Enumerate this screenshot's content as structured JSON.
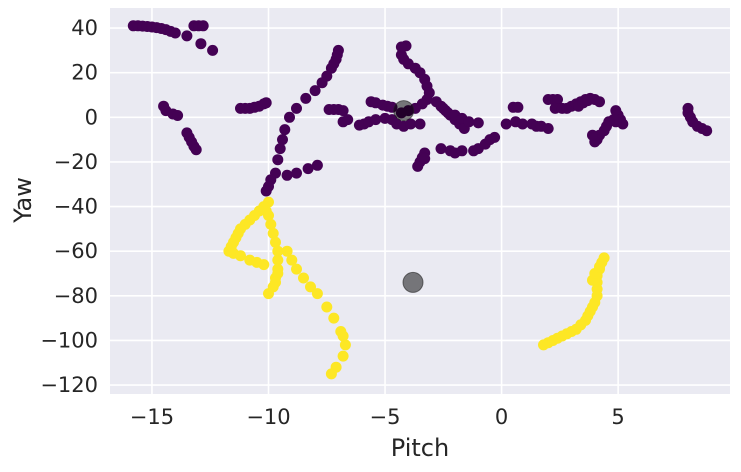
{
  "chart_data": {
    "type": "scatter",
    "xlabel": "Pitch",
    "ylabel": "Yaw",
    "xlim": [
      -16.8,
      9.8
    ],
    "ylim": [
      -124,
      49
    ],
    "xticks": [
      -15,
      -10,
      -5,
      0,
      5
    ],
    "yticks": [
      40,
      20,
      0,
      -20,
      -40,
      -60,
      -80,
      -100,
      -120
    ],
    "grid": true,
    "background": "#eaeaf2",
    "series": [
      {
        "color": "#440154",
        "points": [
          [
            -15.8,
            41
          ],
          [
            -15.6,
            41
          ],
          [
            -15.4,
            40.9
          ],
          [
            -15.2,
            40.7
          ],
          [
            -15,
            40.5
          ],
          [
            -14.8,
            40.2
          ],
          [
            -14.6,
            39.8
          ],
          [
            -14.4,
            39.3
          ],
          [
            -14.2,
            38.5
          ],
          [
            -14,
            37.8
          ],
          [
            -13.5,
            36.5
          ],
          [
            -13.2,
            41
          ],
          [
            -13,
            41
          ],
          [
            -12.8,
            41
          ],
          [
            -12.9,
            33
          ],
          [
            -12.4,
            30
          ],
          [
            -14.5,
            5
          ],
          [
            -14.4,
            3
          ],
          [
            -14.1,
            1.5
          ],
          [
            -13.9,
            0.8
          ],
          [
            -13.5,
            -7
          ],
          [
            -13.4,
            -9
          ],
          [
            -13.3,
            -11
          ],
          [
            -13.2,
            -13
          ],
          [
            -13.1,
            -14.5
          ],
          [
            -11.2,
            4
          ],
          [
            -11,
            4
          ],
          [
            -10.8,
            4
          ],
          [
            -10.6,
            4.5
          ],
          [
            -10.4,
            5
          ],
          [
            -10.2,
            6
          ],
          [
            -10.1,
            6.5
          ],
          [
            -7,
            30
          ],
          [
            -7.05,
            28
          ],
          [
            -7.1,
            26
          ],
          [
            -7.2,
            24
          ],
          [
            -7.3,
            22
          ],
          [
            -7.5,
            18.5
          ],
          [
            -7.7,
            15.5
          ],
          [
            -8,
            12
          ],
          [
            -8.4,
            8.5
          ],
          [
            -8.8,
            4
          ],
          [
            -9.1,
            0
          ],
          [
            -9.3,
            -5.5
          ],
          [
            -9.4,
            -10
          ],
          [
            -9.5,
            -14
          ],
          [
            -9.6,
            -19
          ],
          [
            -9.7,
            -25
          ],
          [
            -9.9,
            -28
          ],
          [
            -10,
            -31
          ],
          [
            -10.1,
            -33
          ],
          [
            -9.2,
            -26
          ],
          [
            -8.8,
            -25
          ],
          [
            -8.3,
            -23
          ],
          [
            -7.9,
            -21.5
          ],
          [
            -7.4,
            3.5
          ],
          [
            -7.2,
            3.5
          ],
          [
            -7,
            3.5
          ],
          [
            -6.8,
            3
          ],
          [
            -6.8,
            -2
          ],
          [
            -6.6,
            -1
          ],
          [
            -6.1,
            -3.5
          ],
          [
            -5.9,
            -3
          ],
          [
            -5.7,
            -2
          ],
          [
            -5.4,
            -1
          ],
          [
            -5,
            -0.5
          ],
          [
            -4.7,
            -1
          ],
          [
            -4.5,
            -3
          ],
          [
            -4.2,
            -4
          ],
          [
            -3.9,
            -3
          ],
          [
            -3.5,
            -3
          ],
          [
            -5.6,
            7
          ],
          [
            -5.4,
            6.5
          ],
          [
            -5.1,
            5.5
          ],
          [
            -4.9,
            5
          ],
          [
            -4.7,
            4.5
          ],
          [
            -4.3,
            28
          ],
          [
            -4.2,
            26
          ],
          [
            -4,
            24
          ],
          [
            -3.7,
            22
          ],
          [
            -3.5,
            20
          ],
          [
            -3.3,
            17
          ],
          [
            -3.2,
            14
          ],
          [
            -3.1,
            11
          ],
          [
            -3.2,
            8
          ],
          [
            -3.4,
            6
          ],
          [
            -3.7,
            4
          ],
          [
            -4,
            3
          ],
          [
            -4.3,
            2
          ],
          [
            -4.1,
            32
          ],
          [
            -4.3,
            31.5
          ],
          [
            -2.8,
            7
          ],
          [
            -2.6,
            5
          ],
          [
            -2.4,
            3
          ],
          [
            -2.2,
            1
          ],
          [
            -2,
            -1
          ],
          [
            -1.8,
            -3
          ],
          [
            -1.6,
            -5
          ],
          [
            -2.5,
            4
          ],
          [
            -2.3,
            2
          ],
          [
            -2,
            1
          ],
          [
            -1.7,
            -0.5
          ],
          [
            -1.4,
            -2
          ],
          [
            -1,
            -2.5
          ],
          [
            -3.3,
            -16
          ],
          [
            -3.4,
            -18
          ],
          [
            -3.5,
            -20
          ],
          [
            -3.6,
            -22
          ],
          [
            -3.3,
            -18.5
          ],
          [
            -2.6,
            -14
          ],
          [
            -2.2,
            -15
          ],
          [
            -2,
            -16
          ],
          [
            -1.7,
            -15
          ],
          [
            -1.2,
            -15
          ],
          [
            -1,
            -14
          ],
          [
            -0.7,
            -12
          ],
          [
            -0.5,
            -10
          ],
          [
            -0.3,
            -9
          ],
          [
            0.2,
            -3
          ],
          [
            0.6,
            -2
          ],
          [
            0.5,
            4.5
          ],
          [
            0.7,
            4.5
          ],
          [
            0.9,
            -3
          ],
          [
            1.3,
            -3
          ],
          [
            1.5,
            -4
          ],
          [
            1.7,
            -4
          ],
          [
            2,
            -5
          ],
          [
            2,
            8
          ],
          [
            2.2,
            8
          ],
          [
            2.4,
            8
          ],
          [
            2.3,
            4
          ],
          [
            2.6,
            4
          ],
          [
            2.8,
            4
          ],
          [
            3,
            5
          ],
          [
            3.2,
            6
          ],
          [
            3.4,
            7
          ],
          [
            3.6,
            8
          ],
          [
            3.8,
            8.5
          ],
          [
            4,
            8
          ],
          [
            4.2,
            7
          ],
          [
            3.3,
            5
          ],
          [
            3.5,
            6.5
          ],
          [
            3.7,
            7.5
          ],
          [
            4.9,
            3
          ],
          [
            5,
            1
          ],
          [
            5.1,
            -1
          ],
          [
            5.2,
            -3
          ],
          [
            4.9,
            -2
          ],
          [
            4.8,
            -1
          ],
          [
            4.6,
            -2
          ],
          [
            4.5,
            -4
          ],
          [
            4.4,
            -6
          ],
          [
            4.2,
            -8
          ],
          [
            4.1,
            -10
          ],
          [
            4,
            -11
          ],
          [
            3.9,
            -8
          ],
          [
            8,
            4
          ],
          [
            8,
            2
          ],
          [
            8.1,
            0
          ],
          [
            8.2,
            -2
          ],
          [
            8.4,
            -4
          ],
          [
            8.6,
            -5
          ],
          [
            8.8,
            -6
          ]
        ]
      },
      {
        "color": "#fde725",
        "points": [
          [
            -10,
            -38
          ],
          [
            -10.2,
            -40
          ],
          [
            -10.4,
            -42
          ],
          [
            -10.6,
            -44
          ],
          [
            -10.8,
            -46
          ],
          [
            -11,
            -48
          ],
          [
            -11.2,
            -50
          ],
          [
            -11.3,
            -52
          ],
          [
            -11.4,
            -54
          ],
          [
            -11.5,
            -56
          ],
          [
            -11.6,
            -58
          ],
          [
            -11.7,
            -60
          ],
          [
            -11.5,
            -61
          ],
          [
            -11.2,
            -62
          ],
          [
            -10.8,
            -64
          ],
          [
            -10.5,
            -65
          ],
          [
            -10.2,
            -66
          ],
          [
            -10.1,
            -42
          ],
          [
            -10,
            -44
          ],
          [
            -9.9,
            -48
          ],
          [
            -9.8,
            -52
          ],
          [
            -9.7,
            -56
          ],
          [
            -9.6,
            -60
          ],
          [
            -9.6,
            -64
          ],
          [
            -9.6,
            -68
          ],
          [
            -9.7,
            -72
          ],
          [
            -9.8,
            -76
          ],
          [
            -10,
            -79
          ],
          [
            -9.6,
            -70
          ],
          [
            -9.7,
            -74
          ],
          [
            -9.2,
            -60
          ],
          [
            -9,
            -64
          ],
          [
            -8.8,
            -68
          ],
          [
            -8.5,
            -72
          ],
          [
            -8.2,
            -76
          ],
          [
            -7.9,
            -79
          ],
          [
            -7.5,
            -85
          ],
          [
            -7.2,
            -90
          ],
          [
            -6.9,
            -96
          ],
          [
            -6.7,
            -102
          ],
          [
            -6.8,
            -107
          ],
          [
            -7.1,
            -112
          ],
          [
            -7.3,
            -115
          ],
          [
            -6.8,
            -98
          ],
          [
            1.8,
            -102
          ],
          [
            2,
            -101
          ],
          [
            2.2,
            -100
          ],
          [
            2.4,
            -99
          ],
          [
            2.6,
            -98
          ],
          [
            2.8,
            -97
          ],
          [
            3,
            -96
          ],
          [
            3.2,
            -95
          ],
          [
            3.4,
            -93
          ],
          [
            3.6,
            -91
          ],
          [
            3.7,
            -89
          ],
          [
            3.8,
            -87
          ],
          [
            3.9,
            -85
          ],
          [
            4,
            -83
          ],
          [
            4.1,
            -80
          ],
          [
            4.1,
            -77
          ],
          [
            4.1,
            -74
          ],
          [
            4.1,
            -71
          ],
          [
            4.2,
            -68
          ],
          [
            4.3,
            -65
          ],
          [
            4.4,
            -63
          ],
          [
            3.9,
            -73
          ],
          [
            4,
            -70
          ],
          [
            4.2,
            -67
          ]
        ]
      },
      {
        "color": "#000000",
        "alpha": 0.5,
        "size": "large",
        "points": [
          [
            -4.2,
            3
          ],
          [
            -3.8,
            -74
          ]
        ]
      }
    ]
  }
}
